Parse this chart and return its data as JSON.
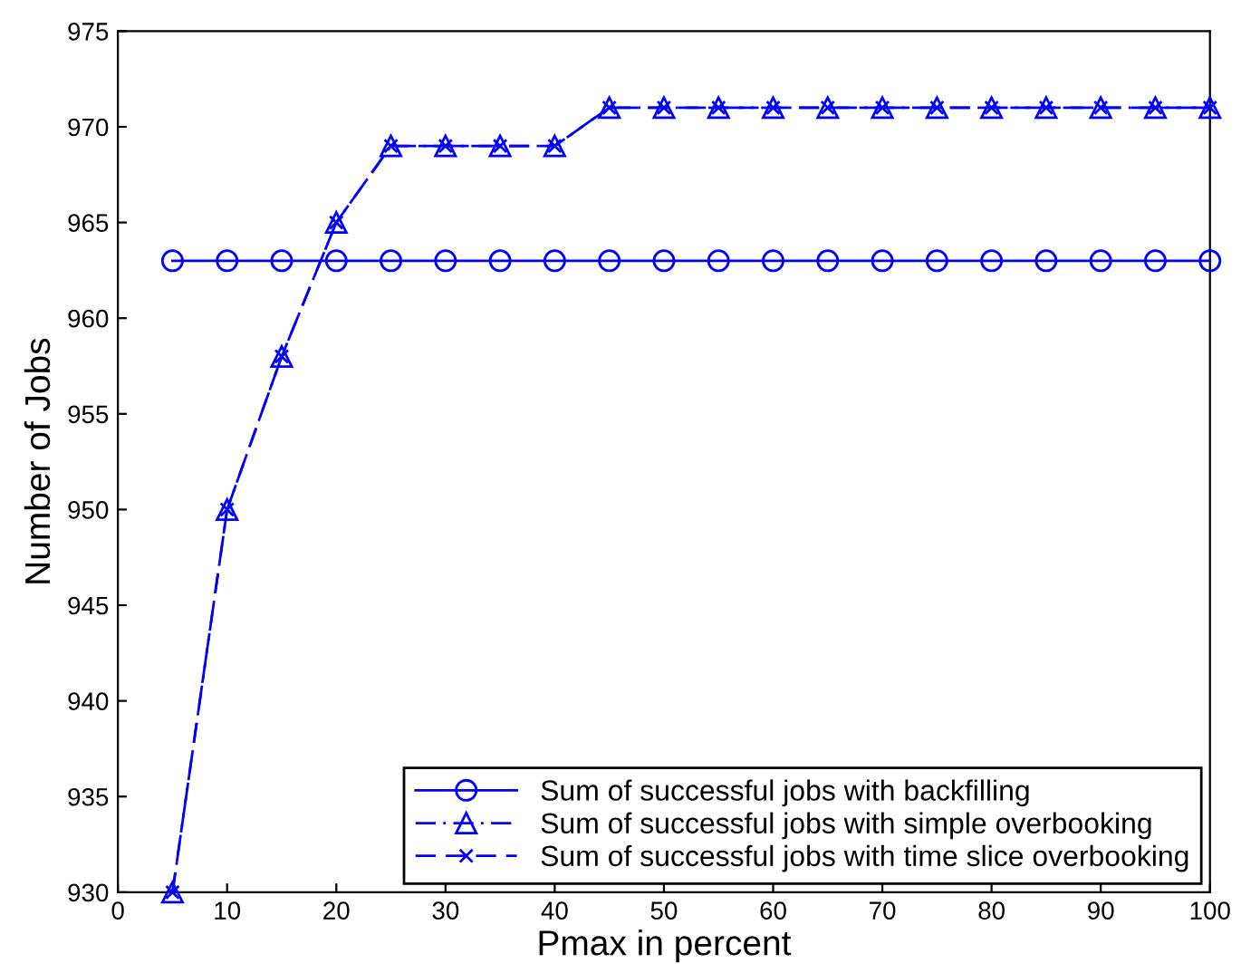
{
  "chart_data": {
    "type": "line",
    "xlabel": "Pmax in percent",
    "ylabel": "Number of Jobs",
    "x": [
      5,
      10,
      15,
      20,
      25,
      30,
      35,
      40,
      45,
      50,
      55,
      60,
      65,
      70,
      75,
      80,
      85,
      90,
      95,
      100
    ],
    "series": [
      {
        "name": "Sum of successful jobs with backfilling",
        "color": "#0000ff",
        "marker": "circle",
        "line_style": "solid",
        "values": [
          963,
          963,
          963,
          963,
          963,
          963,
          963,
          963,
          963,
          963,
          963,
          963,
          963,
          963,
          963,
          963,
          963,
          963,
          963,
          963
        ]
      },
      {
        "name": "Sum of successful jobs with simple overbooking",
        "color": "#0000ff",
        "marker": "triangle",
        "line_style": "dashdot",
        "values": [
          930,
          950,
          958,
          965,
          969,
          969,
          969,
          969,
          971,
          971,
          971,
          971,
          971,
          971,
          971,
          971,
          971,
          971,
          971,
          971
        ]
      },
      {
        "name": "Sum of successful jobs with time slice overbooking",
        "color": "#0000ff",
        "marker": "cross",
        "line_style": "dashed",
        "values": [
          930,
          950,
          958,
          965,
          969,
          969,
          969,
          969,
          971,
          971,
          971,
          971,
          971,
          971,
          971,
          971,
          971,
          971,
          971,
          971
        ]
      }
    ],
    "xlim": [
      0,
      100
    ],
    "xticks": [
      0,
      10,
      20,
      30,
      40,
      50,
      60,
      70,
      80,
      90,
      100
    ],
    "ylim": [
      930,
      975
    ],
    "yticks": [
      930,
      935,
      940,
      945,
      950,
      955,
      960,
      965,
      970,
      975
    ],
    "grid": false,
    "legend": "bottom right"
  }
}
